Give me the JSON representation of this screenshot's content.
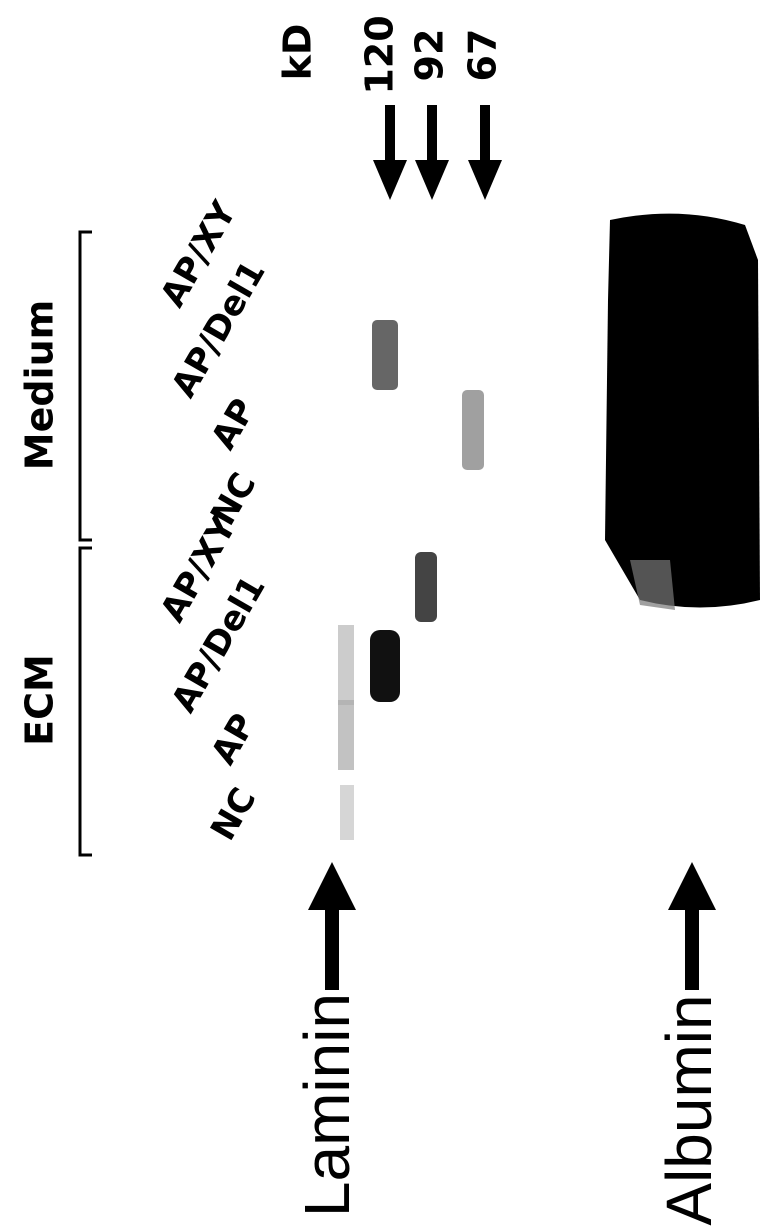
{
  "markers": {
    "unit": "kD",
    "sizes": [
      "120",
      "92",
      "67"
    ]
  },
  "groups": [
    {
      "label": "Medium",
      "lanes": [
        "NC",
        "AP",
        "AP/Del1",
        "AP/XY"
      ]
    },
    {
      "label": "ECM",
      "lanes": [
        "NC",
        "AP",
        "AP/Del1",
        "AP/XY"
      ]
    }
  ],
  "proteins": [
    "Laminin",
    "Albumin"
  ]
}
